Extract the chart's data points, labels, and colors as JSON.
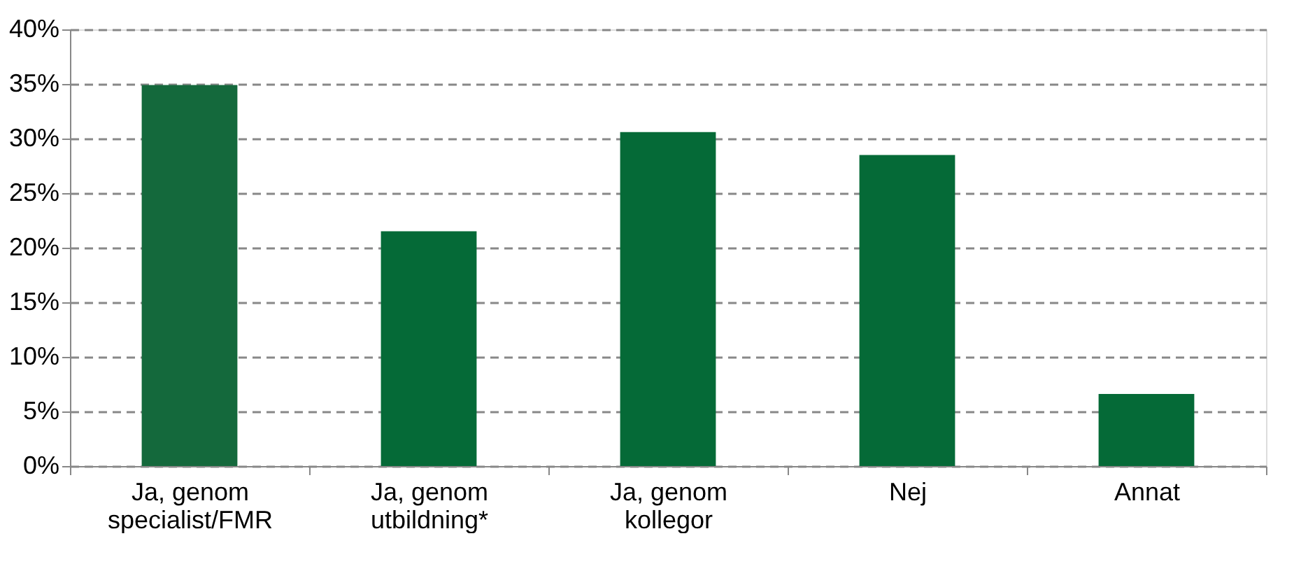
{
  "chart_data": {
    "type": "bar",
    "categories": [
      "Ja, genom\nspecialist/FMR",
      "Ja, genom\nutbildning*",
      "Ja, genom\nkollegor",
      "Nej",
      "Annat"
    ],
    "values": [
      34.9,
      21.5,
      30.6,
      28.5,
      6.6
    ],
    "colors": [
      "#14693c",
      "#056a37",
      "#056a37",
      "#056a37",
      "#056a37"
    ],
    "ylim": [
      0,
      40
    ],
    "yticks": [
      {
        "value": 0,
        "label": "0%"
      },
      {
        "value": 5,
        "label": "5%"
      },
      {
        "value": 10,
        "label": "10%"
      },
      {
        "value": 15,
        "label": "15%"
      },
      {
        "value": 20,
        "label": "20%"
      },
      {
        "value": 25,
        "label": "25%"
      },
      {
        "value": 30,
        "label": "30%"
      },
      {
        "value": 35,
        "label": "35%"
      },
      {
        "value": 40,
        "label": "40%"
      }
    ],
    "grid": "y"
  }
}
